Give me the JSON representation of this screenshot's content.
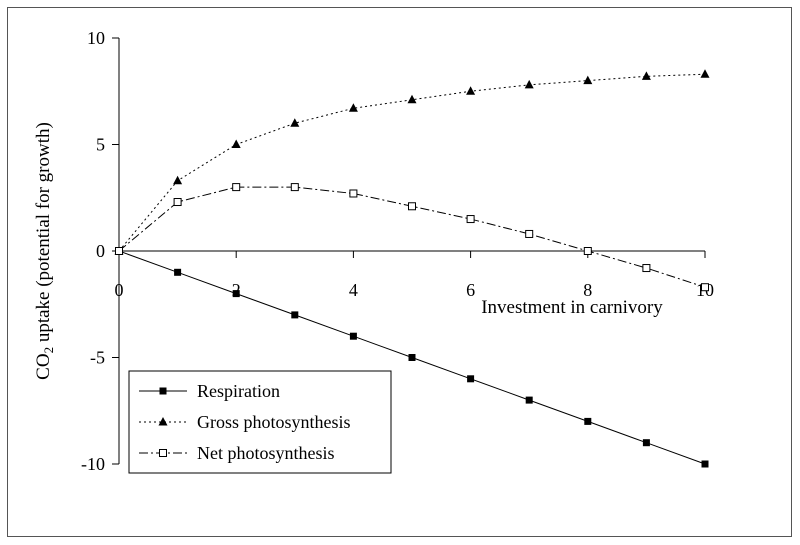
{
  "chart_data": {
    "type": "line",
    "title": "",
    "xlabel": "Investment in carnivory",
    "ylabel": {
      "prefix": "CO",
      "subscript": "2",
      "rest": " uptake (potential for growth)"
    },
    "x": [
      0,
      1,
      2,
      3,
      4,
      5,
      6,
      7,
      8,
      9,
      10
    ],
    "xlim": [
      0,
      10
    ],
    "ylim": [
      -10,
      10
    ],
    "xticks": [
      "0",
      "2",
      "4",
      "6",
      "8",
      "10"
    ],
    "yticks": [
      "10",
      "5",
      "0",
      "-5",
      "-10"
    ],
    "grid": false,
    "legend_position": "bottom-left",
    "series": [
      {
        "name": "Respiration",
        "marker": "filled-square",
        "line": "solid",
        "values": [
          0,
          -1,
          -2,
          -3,
          -4,
          -5,
          -6,
          -7,
          -8,
          -9,
          -10
        ]
      },
      {
        "name": "Gross photosynthesis",
        "marker": "filled-triangle",
        "line": "dotted",
        "values": [
          0,
          3.3,
          5.0,
          6.0,
          6.7,
          7.1,
          7.5,
          7.8,
          8.0,
          8.2,
          8.3
        ]
      },
      {
        "name": "Net photosynthesis",
        "marker": "open-square",
        "line": "dash-dot",
        "values": [
          0,
          2.3,
          3.0,
          3.0,
          2.7,
          2.1,
          1.5,
          0.8,
          0.0,
          -0.8,
          -1.7
        ]
      }
    ]
  }
}
